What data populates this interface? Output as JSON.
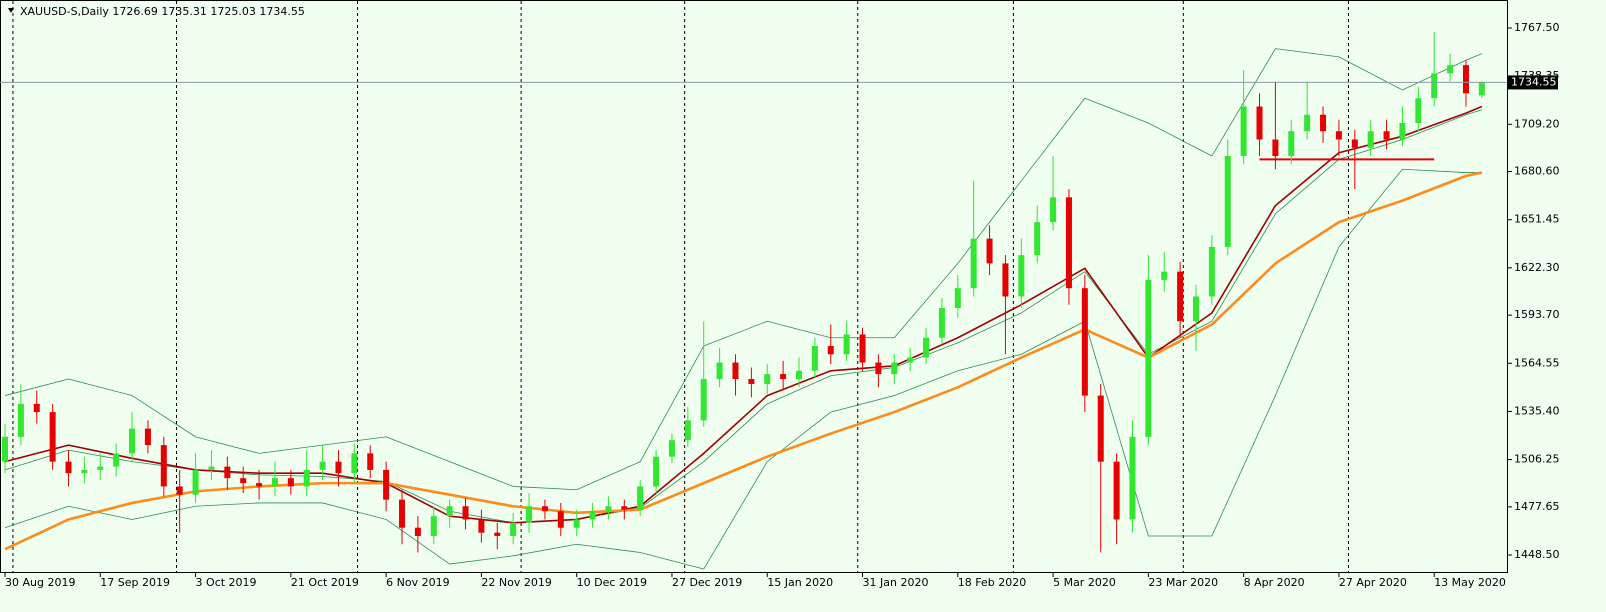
{
  "chart_data": {
    "type": "candlestick",
    "title": "XAUUSD-S,Daily  1726.69 1735.31 1725.03 1734.55",
    "categories": [
      "30 Aug 2019",
      null,
      null,
      null,
      null,
      null,
      "17 Sep 2019",
      null,
      null,
      null,
      null,
      null,
      "3 Oct 2019",
      null,
      null,
      null,
      null,
      null,
      "21 Oct 2019",
      null,
      null,
      null,
      null,
      null,
      "6 Nov 2019",
      null,
      null,
      null,
      null,
      null,
      "22 Nov 2019",
      null,
      null,
      null,
      null,
      null,
      "10 Dec 2019",
      null,
      null,
      null,
      null,
      null,
      "27 Dec 2019",
      null,
      null,
      null,
      null,
      null,
      "15 Jan 2020",
      null,
      null,
      null,
      null,
      null,
      "31 Jan 2020",
      null,
      null,
      null,
      null,
      null,
      "18 Feb 2020",
      null,
      null,
      null,
      null,
      null,
      "5 Mar 2020",
      null,
      null,
      null,
      null,
      null,
      "23 Mar 2020",
      null,
      null,
      null,
      null,
      null,
      "8 Apr 2020",
      null,
      null,
      null,
      null,
      null,
      "27 Apr 2020",
      null,
      null,
      null,
      null,
      null,
      "13 May 2020",
      null,
      null,
      null
    ],
    "open": [
      1505,
      1520,
      1540,
      1535,
      1505,
      1498,
      1500,
      1502,
      1510,
      1525,
      1515,
      1490,
      1485,
      1500,
      1502,
      1495,
      1492,
      1490,
      1495,
      1490,
      1500,
      1505,
      1498,
      1510,
      1500,
      1482,
      1465,
      1460,
      1472,
      1478,
      1470,
      1462,
      1460,
      1468,
      1478,
      1475,
      1465,
      1470,
      1475,
      1478,
      1476,
      1490,
      1508,
      1518,
      1530,
      1555,
      1565,
      1555,
      1552,
      1558,
      1555,
      1560,
      1575,
      1570,
      1582,
      1565,
      1558,
      1565,
      1568,
      1580,
      1598,
      1610,
      1640,
      1625,
      1605,
      1630,
      1650,
      1665,
      1610,
      1545,
      1505,
      1470,
      1520,
      1615,
      1620,
      1590,
      1605,
      1635,
      1690,
      1720,
      1700,
      1690,
      1705,
      1715,
      1705,
      1700,
      1695,
      1705,
      1700,
      1710,
      1725,
      1740,
      1745,
      1726.69
    ],
    "high": [
      1528,
      1552,
      1548,
      1540,
      1512,
      1508,
      1510,
      1516,
      1535,
      1530,
      1520,
      1500,
      1510,
      1512,
      1508,
      1502,
      1500,
      1505,
      1500,
      1512,
      1515,
      1512,
      1516,
      1515,
      1505,
      1488,
      1472,
      1478,
      1482,
      1483,
      1476,
      1468,
      1474,
      1486,
      1482,
      1480,
      1476,
      1480,
      1484,
      1482,
      1494,
      1512,
      1522,
      1538,
      1590,
      1574,
      1570,
      1562,
      1564,
      1566,
      1568,
      1580,
      1588,
      1590,
      1586,
      1570,
      1570,
      1574,
      1586,
      1604,
      1618,
      1675,
      1648,
      1630,
      1640,
      1660,
      1690,
      1670,
      1618,
      1552,
      1510,
      1530,
      1630,
      1632,
      1626,
      1612,
      1642,
      1700,
      1742,
      1728,
      1735,
      1712,
      1735,
      1720,
      1712,
      1706,
      1712,
      1712,
      1720,
      1732,
      1765,
      1752,
      1748,
      1735.31
    ],
    "low": [
      1498,
      1515,
      1528,
      1500,
      1490,
      1492,
      1494,
      1496,
      1505,
      1510,
      1484,
      1462,
      1480,
      1494,
      1488,
      1486,
      1482,
      1484,
      1485,
      1484,
      1494,
      1490,
      1492,
      1495,
      1475,
      1455,
      1450,
      1455,
      1465,
      1464,
      1456,
      1452,
      1455,
      1462,
      1470,
      1460,
      1460,
      1465,
      1470,
      1470,
      1472,
      1486,
      1504,
      1514,
      1526,
      1550,
      1545,
      1544,
      1546,
      1548,
      1550,
      1556,
      1564,
      1566,
      1560,
      1550,
      1552,
      1560,
      1564,
      1576,
      1592,
      1605,
      1618,
      1570,
      1598,
      1625,
      1645,
      1600,
      1535,
      1450,
      1455,
      1462,
      1515,
      1608,
      1580,
      1572,
      1600,
      1630,
      1685,
      1690,
      1682,
      1685,
      1700,
      1698,
      1690,
      1670,
      1690,
      1694,
      1696,
      1705,
      1720,
      1735,
      1720,
      1725.03
    ],
    "close": [
      1520,
      1540,
      1535,
      1505,
      1498,
      1500,
      1502,
      1510,
      1525,
      1515,
      1490,
      1485,
      1500,
      1502,
      1495,
      1492,
      1490,
      1495,
      1490,
      1500,
      1505,
      1498,
      1510,
      1500,
      1482,
      1465,
      1460,
      1472,
      1478,
      1470,
      1462,
      1460,
      1468,
      1478,
      1475,
      1465,
      1470,
      1475,
      1478,
      1476,
      1490,
      1508,
      1518,
      1530,
      1555,
      1565,
      1555,
      1552,
      1558,
      1555,
      1560,
      1575,
      1570,
      1582,
      1565,
      1558,
      1565,
      1568,
      1580,
      1598,
      1610,
      1640,
      1625,
      1605,
      1630,
      1650,
      1665,
      1610,
      1545,
      1505,
      1470,
      1520,
      1615,
      1620,
      1590,
      1605,
      1635,
      1690,
      1720,
      1700,
      1690,
      1705,
      1715,
      1705,
      1700,
      1695,
      1705,
      1700,
      1710,
      1725,
      1740,
      1745,
      1728,
      1734.55
    ],
    "up_color": "#32e632",
    "down_color": "#e60000",
    "indicators": [
      {
        "color": "#2e8b57",
        "width": 0.8,
        "x": [
          0,
          4,
          8,
          12,
          16,
          20,
          24,
          28,
          32,
          36,
          40,
          44,
          48,
          52,
          56,
          60,
          64,
          68,
          72,
          76,
          80,
          84,
          88,
          92,
          93
        ],
        "values": [
          1545,
          1555,
          1545,
          1520,
          1510,
          1515,
          1520,
          1505,
          1490,
          1488,
          1505,
          1575,
          1590,
          1580,
          1580,
          1625,
          1675,
          1725,
          1710,
          1690,
          1755,
          1750,
          1730,
          1748,
          1752
        ]
      },
      {
        "color": "#2e8b57",
        "width": 0.8,
        "x": [
          0,
          4,
          8,
          12,
          16,
          20,
          24,
          28,
          32,
          36,
          40,
          44,
          48,
          52,
          56,
          60,
          64,
          68,
          72,
          76,
          80,
          84,
          88,
          92,
          93
        ],
        "values": [
          1500,
          1512,
          1505,
          1500,
          1497,
          1496,
          1493,
          1475,
          1468,
          1470,
          1477,
          1505,
          1540,
          1557,
          1562,
          1577,
          1595,
          1620,
          1570,
          1590,
          1655,
          1688,
          1700,
          1715,
          1718
        ]
      },
      {
        "color": "#2e8b57",
        "width": 0.8,
        "x": [
          0,
          4,
          8,
          12,
          16,
          20,
          24,
          28,
          32,
          36,
          40,
          44,
          48,
          52,
          56,
          60,
          64,
          68,
          72,
          76,
          80,
          84,
          88,
          92,
          93
        ],
        "values": [
          1465,
          1478,
          1470,
          1478,
          1480,
          1480,
          1470,
          1443,
          1448,
          1455,
          1450,
          1440,
          1505,
          1535,
          1545,
          1560,
          1570,
          1590,
          1460,
          1460,
          1545,
          1635,
          1682,
          1680,
          1680
        ]
      },
      {
        "color": "#a00000",
        "width": 1.6,
        "x": [
          0,
          4,
          8,
          12,
          16,
          20,
          24,
          28,
          32,
          36,
          40,
          44,
          48,
          52,
          56,
          60,
          64,
          68,
          72,
          76,
          80,
          84,
          88,
          92,
          93
        ],
        "values": [
          1505,
          1515,
          1507,
          1500,
          1498,
          1498,
          1492,
          1472,
          1468,
          1470,
          1478,
          1510,
          1545,
          1560,
          1563,
          1580,
          1600,
          1622,
          1568,
          1595,
          1660,
          1692,
          1702,
          1716,
          1720
        ]
      },
      {
        "color": "#ff8c1a",
        "width": 2.6,
        "x": [
          0,
          4,
          8,
          12,
          16,
          20,
          24,
          28,
          32,
          36,
          40,
          44,
          48,
          52,
          56,
          60,
          64,
          68,
          72,
          76,
          80,
          84,
          88,
          92,
          93
        ],
        "values": [
          1452,
          1470,
          1480,
          1487,
          1490,
          1492,
          1492,
          1485,
          1478,
          1474,
          1476,
          1492,
          1508,
          1522,
          1535,
          1550,
          1568,
          1585,
          1568,
          1588,
          1625,
          1650,
          1663,
          1678,
          1680
        ]
      }
    ],
    "level_line": {
      "value": 1688,
      "from": 79,
      "to": 90,
      "color": "#e60000"
    },
    "period_separators": [
      0.5,
      10.8,
      22.2,
      32.5,
      42.8,
      53.7,
      63.5,
      74.2,
      84.6
    ],
    "ylim": [
      1438.2,
      1784.45
    ],
    "yticks": [
      {
        "value": 1448.5,
        "label": "1448.50"
      },
      1477.65,
      1506.25,
      {
        "value": 1535.4,
        "label": "1535.40"
      },
      1564.55,
      {
        "value": 1593.7,
        "label": "1593.70"
      },
      {
        "value": 1622.3,
        "label": "1622.30"
      },
      1651.45,
      {
        "value": 1680.6,
        "label": "1680.60"
      },
      {
        "value": 1709.2,
        "label": "1709.20"
      },
      1738.35,
      {
        "value": 1767.5,
        "label": "1767.50"
      }
    ]
  }
}
